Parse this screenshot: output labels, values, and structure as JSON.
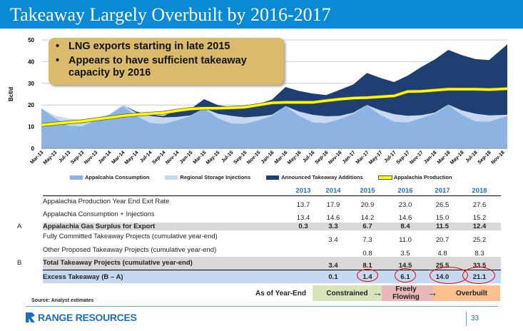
{
  "title": "Takeaway Largely Overbuilt by 2016-2017",
  "callout": [
    "LNG exports starting in late 2015",
    "Appears to have sufficient takeaway capacity by 2016"
  ],
  "chart_data": {
    "type": "area",
    "stacked": true,
    "ylabel": "Bcf/d",
    "ylim": [
      0,
      50
    ],
    "yticks": [
      0,
      10,
      20,
      30,
      40,
      50
    ],
    "grid": true,
    "legend": "bottom",
    "categories": [
      "Mar-13",
      "May-13",
      "Jul-13",
      "Sep-13",
      "Nov-13",
      "Jan-14",
      "Mar-14",
      "May-14",
      "Jul-14",
      "Sep-14",
      "Nov-14",
      "Jan-15",
      "Mar-15",
      "May-15",
      "Jul-15",
      "Sep-15",
      "Nov-15",
      "Jan-16",
      "Mar-16",
      "May-16",
      "Jul-16",
      "Sep-16",
      "Nov-16",
      "Jan-17",
      "Mar-17",
      "May-17",
      "Jul-17",
      "Sep-17",
      "Nov-17",
      "Jan-18",
      "Mar-18",
      "May-18",
      "Jul-18",
      "Sep-18",
      "Nov-18"
    ],
    "series": [
      {
        "name": "Appalcahia Consumption",
        "color": "#8db3e2",
        "values": [
          18.5,
          14,
          10.5,
          10.2,
          13,
          15.5,
          19.5,
          15,
          11.8,
          11.3,
          13,
          15,
          18.5,
          14,
          11.5,
          11.4,
          13,
          15,
          19.5,
          15,
          12,
          11.7,
          13.5,
          16,
          19.8,
          15.5,
          12.3,
          12,
          14,
          16,
          20,
          15.5,
          12.5,
          12.3,
          15
        ]
      },
      {
        "name": "Regional Storage Injections",
        "color": "#c6d9f1",
        "values": [
          0,
          1,
          3.3,
          3,
          0.8,
          0.3,
          0.5,
          1.5,
          3.2,
          3,
          1.5,
          0.2,
          0,
          2,
          3.5,
          2.9,
          1.7,
          0.5,
          0,
          2,
          3.5,
          3.1,
          1.5,
          0.5,
          0.2,
          2,
          3.5,
          3,
          1.3,
          0.5,
          0.2,
          2,
          3.5,
          2.9,
          0.5
        ]
      },
      {
        "name": "Announced Takeaway Additions",
        "color": "#1f3f73",
        "values": [
          0,
          0,
          0,
          0,
          0,
          0,
          0,
          0.5,
          0.5,
          0.7,
          3,
          3,
          4.2,
          4,
          4,
          4.7,
          5.8,
          7,
          8.8,
          9.5,
          9.8,
          9.8,
          12,
          13,
          14.8,
          15,
          14.8,
          18.5,
          22.2,
          24.5,
          25.2,
          25.5,
          25.2,
          25.5,
          32.5
        ]
      },
      {
        "name": "Appalachia Production",
        "type": "line",
        "color": "#ffff00",
        "values": [
          10.8,
          11.4,
          12,
          12.5,
          13.4,
          14.2,
          15,
          15.6,
          16,
          16.4,
          17.4,
          18.2,
          18.5,
          18.5,
          18.7,
          19,
          20,
          21,
          21.2,
          21.2,
          21.2,
          22,
          22.7,
          23.2,
          23.4,
          23.8,
          24.2,
          26.2,
          26.3,
          26.8,
          27.3,
          27.3,
          27.3,
          27.1,
          27.5
        ]
      }
    ]
  },
  "table": {
    "years": [
      "2013",
      "2014",
      "2015",
      "2016",
      "2017",
      "2018"
    ],
    "rows": [
      {
        "label": "Appalachia Production Year End Exit Rate",
        "values": [
          "13.7",
          "17.9",
          "20.9",
          "23.0",
          "26.5",
          "27.6"
        ]
      },
      {
        "label": "Appalachia Consumption + Injections",
        "values": [
          "13.4",
          "14.6",
          "14.2",
          "14.6",
          "15.0",
          "15.2"
        ]
      },
      {
        "marker": "A",
        "label": "Appalachia Gas Surplus for Export",
        "values": [
          "0.3",
          "3.3",
          "6.7",
          "8.4",
          "11.5",
          "12.4"
        ]
      },
      {
        "label": "Fully Committed Takeaway Projects (cumulative year-end)",
        "values": [
          "",
          "3.4",
          "7.3",
          "11.0",
          "20.7",
          "25.2"
        ]
      },
      {
        "label": "Other Proposed Takeaway Projects (cumulative year-end)",
        "values": [
          "",
          "",
          "0.8",
          "3.5",
          "4.8",
          "8.3"
        ]
      },
      {
        "marker": "B",
        "label": "Total Takeaway Projects (cumulative year-end)",
        "values": [
          "",
          "3.4",
          "8.1",
          "14.5",
          "25.5",
          "33.5"
        ]
      },
      {
        "label": "Excess Takeaway (B – A)",
        "values": [
          "",
          "0.1",
          "1.4",
          "6.1",
          "14.0",
          "21.1"
        ]
      }
    ]
  },
  "phases": {
    "label": "As of Year-End",
    "items": [
      {
        "text": "Constrained",
        "color": "#d8e4bc"
      },
      {
        "text": "Freely Flowing",
        "color": "#e6b9b8"
      },
      {
        "text": "Overbuilt",
        "color": "#fac090"
      }
    ]
  },
  "source": "Source: Analyst estimates",
  "logo": "RANGE RESOURCES",
  "page": "33"
}
